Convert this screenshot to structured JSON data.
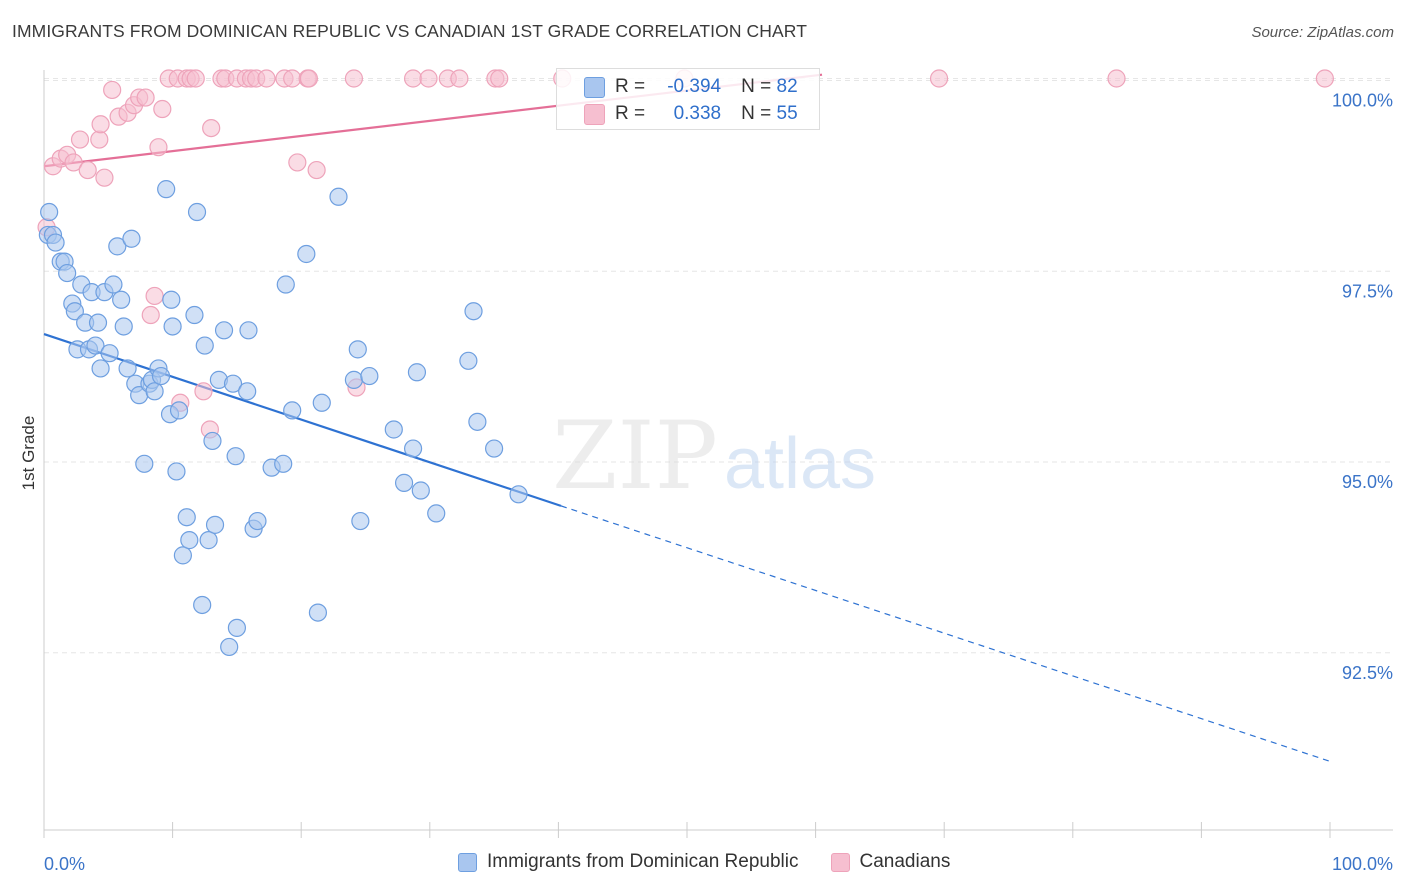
{
  "title": "IMMIGRANTS FROM DOMINICAN REPUBLIC VS CANADIAN 1ST GRADE CORRELATION CHART",
  "source": "Source: ZipAtlas.com",
  "watermark": {
    "zip": "ZIP",
    "atlas": "atlas"
  },
  "colors": {
    "blue_fill": "#a9c6ef",
    "blue_stroke": "#6e9fe0",
    "blue_line": "#2e72d2",
    "pink_fill": "#f6bfd0",
    "pink_stroke": "#eea3ba",
    "pink_line": "#e46f97",
    "tick_label": "#3b74c8",
    "grid": "#e6e6e6"
  },
  "stats": [
    {
      "r_label": "R =",
      "r_value": "-0.394",
      "n_label": "N =",
      "n_value": "82",
      "series": "blue"
    },
    {
      "r_label": "R =",
      "r_value": "0.338",
      "n_label": "N =",
      "n_value": "55",
      "series": "pink"
    }
  ],
  "legend": [
    {
      "label": "Immigrants from Dominican Republic",
      "series": "blue"
    },
    {
      "label": "Canadians",
      "series": "pink"
    }
  ],
  "chart_data": {
    "type": "scatter",
    "title": "IMMIGRANTS FROM DOMINICAN REPUBLIC VS CANADIAN 1ST GRADE CORRELATION CHART",
    "xlabel": "",
    "ylabel": "1st Grade",
    "xlim": [
      0,
      100
    ],
    "ylim": [
      90.4,
      100.4
    ],
    "x_tick_labels": [
      "0.0%",
      "100.0%"
    ],
    "y_ticks": [
      92.5,
      95.0,
      97.5,
      100.0
    ],
    "y_tick_labels": [
      "92.5%",
      "95.0%",
      "97.5%",
      "100.0%"
    ],
    "grid": true,
    "legend_position": "bottom",
    "series": [
      {
        "name": "Immigrants from Dominican Republic",
        "color": "#a9c6ef",
        "trend": {
          "x0": 0,
          "y0": 96.65,
          "x1": 100,
          "y1": 91.05,
          "solid_until": 40.2
        },
        "points": [
          [
            0.3,
            97.95
          ],
          [
            0.4,
            98.25
          ],
          [
            0.7,
            97.95
          ],
          [
            0.9,
            97.85
          ],
          [
            1.3,
            97.6
          ],
          [
            1.6,
            97.6
          ],
          [
            1.8,
            97.45
          ],
          [
            2.2,
            97.05
          ],
          [
            2.4,
            96.95
          ],
          [
            2.6,
            96.45
          ],
          [
            2.9,
            97.3
          ],
          [
            3.2,
            96.8
          ],
          [
            3.5,
            96.45
          ],
          [
            3.7,
            97.2
          ],
          [
            4.0,
            96.5
          ],
          [
            4.2,
            96.8
          ],
          [
            4.4,
            96.2
          ],
          [
            4.7,
            97.2
          ],
          [
            5.1,
            96.4
          ],
          [
            5.4,
            97.3
          ],
          [
            5.7,
            97.8
          ],
          [
            6.0,
            97.1
          ],
          [
            6.2,
            96.75
          ],
          [
            6.5,
            96.2
          ],
          [
            6.8,
            97.9
          ],
          [
            7.1,
            96.0
          ],
          [
            7.4,
            95.85
          ],
          [
            7.8,
            94.95
          ],
          [
            8.2,
            96.0
          ],
          [
            8.4,
            96.05
          ],
          [
            8.6,
            95.9
          ],
          [
            8.9,
            96.2
          ],
          [
            9.1,
            96.1
          ],
          [
            9.5,
            98.55
          ],
          [
            9.8,
            95.6
          ],
          [
            10.0,
            96.75
          ],
          [
            10.3,
            94.85
          ],
          [
            10.5,
            95.65
          ],
          [
            10.8,
            93.75
          ],
          [
            11.1,
            94.25
          ],
          [
            11.3,
            93.95
          ],
          [
            11.7,
            96.9
          ],
          [
            11.9,
            98.25
          ],
          [
            12.3,
            93.1
          ],
          [
            12.5,
            96.5
          ],
          [
            12.8,
            93.95
          ],
          [
            13.1,
            95.25
          ],
          [
            13.3,
            94.15
          ],
          [
            13.6,
            96.05
          ],
          [
            14.0,
            96.7
          ],
          [
            14.4,
            92.55
          ],
          [
            14.7,
            96.0
          ],
          [
            14.9,
            95.05
          ],
          [
            15.0,
            92.8
          ],
          [
            15.9,
            96.7
          ],
          [
            16.3,
            94.1
          ],
          [
            16.6,
            94.2
          ],
          [
            17.7,
            94.9
          ],
          [
            18.6,
            94.95
          ],
          [
            18.8,
            97.3
          ],
          [
            19.3,
            95.65
          ],
          [
            20.4,
            97.7
          ],
          [
            21.3,
            93.0
          ],
          [
            21.6,
            95.75
          ],
          [
            22.9,
            98.45
          ],
          [
            24.1,
            96.05
          ],
          [
            24.4,
            96.45
          ],
          [
            24.6,
            94.2
          ],
          [
            25.3,
            96.1
          ],
          [
            27.2,
            95.4
          ],
          [
            28.0,
            94.7
          ],
          [
            28.7,
            95.15
          ],
          [
            29.0,
            96.15
          ],
          [
            29.3,
            94.6
          ],
          [
            30.5,
            94.3
          ],
          [
            33.0,
            96.3
          ],
          [
            33.4,
            96.95
          ],
          [
            33.7,
            95.5
          ],
          [
            35.0,
            95.15
          ],
          [
            36.9,
            94.55
          ],
          [
            9.9,
            97.1
          ],
          [
            15.8,
            95.9
          ]
        ]
      },
      {
        "name": "Canadians",
        "color": "#f6bfd0",
        "trend": {
          "x0": 0,
          "y0": 98.85,
          "x1": 60.5,
          "y1": 100.05
        },
        "points": [
          [
            0.2,
            98.05
          ],
          [
            0.7,
            98.85
          ],
          [
            1.3,
            98.95
          ],
          [
            1.8,
            99.0
          ],
          [
            2.3,
            98.9
          ],
          [
            2.8,
            99.2
          ],
          [
            3.4,
            98.8
          ],
          [
            4.3,
            99.2
          ],
          [
            4.4,
            99.4
          ],
          [
            4.7,
            98.7
          ],
          [
            5.3,
            99.85
          ],
          [
            5.8,
            99.5
          ],
          [
            6.5,
            99.55
          ],
          [
            7.0,
            99.65
          ],
          [
            7.4,
            99.75
          ],
          [
            7.9,
            99.75
          ],
          [
            8.3,
            96.9
          ],
          [
            8.6,
            97.15
          ],
          [
            8.9,
            99.1
          ],
          [
            9.2,
            99.6
          ],
          [
            9.7,
            100.0
          ],
          [
            10.4,
            100.0
          ],
          [
            10.6,
            95.75
          ],
          [
            11.1,
            100.0
          ],
          [
            11.4,
            100.0
          ],
          [
            11.8,
            100.0
          ],
          [
            12.4,
            95.9
          ],
          [
            12.9,
            95.4
          ],
          [
            13.0,
            99.35
          ],
          [
            13.8,
            100.0
          ],
          [
            14.1,
            100.0
          ],
          [
            15.0,
            100.0
          ],
          [
            15.7,
            100.0
          ],
          [
            16.1,
            100.0
          ],
          [
            16.5,
            100.0
          ],
          [
            17.3,
            100.0
          ],
          [
            18.7,
            100.0
          ],
          [
            19.3,
            100.0
          ],
          [
            19.7,
            98.9
          ],
          [
            20.5,
            100.0
          ],
          [
            20.6,
            100.0
          ],
          [
            21.2,
            98.8
          ],
          [
            24.1,
            100.0
          ],
          [
            24.3,
            95.95
          ],
          [
            28.7,
            100.0
          ],
          [
            29.9,
            100.0
          ],
          [
            31.4,
            100.0
          ],
          [
            32.3,
            100.0
          ],
          [
            35.1,
            100.0
          ],
          [
            35.4,
            100.0
          ],
          [
            40.3,
            100.0
          ],
          [
            49.8,
            100.0
          ],
          [
            69.6,
            100.0
          ],
          [
            83.4,
            100.0
          ],
          [
            99.6,
            100.0
          ]
        ]
      }
    ]
  }
}
